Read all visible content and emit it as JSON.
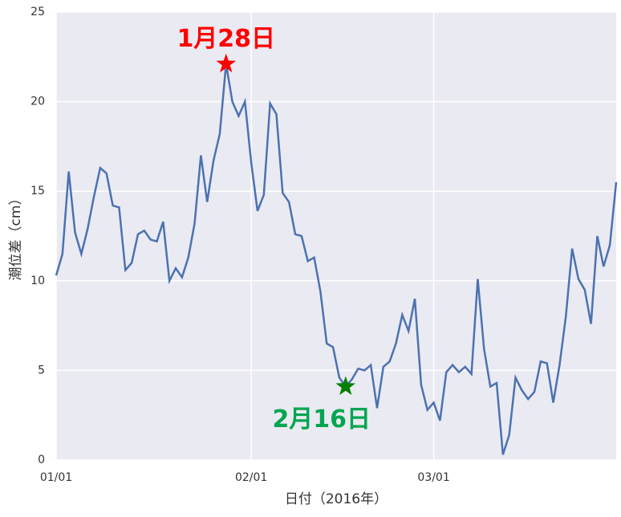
{
  "chart_data": {
    "type": "line",
    "x_label": "日付（2016年）",
    "y_label": "潮位差（cm）",
    "categories": [
      "01/01",
      null,
      null,
      null,
      null,
      null,
      null,
      null,
      null,
      null,
      null,
      null,
      null,
      null,
      null,
      null,
      null,
      null,
      null,
      null,
      null,
      null,
      null,
      null,
      null,
      null,
      null,
      null,
      null,
      null,
      null,
      "02/01",
      null,
      null,
      null,
      null,
      null,
      null,
      null,
      null,
      null,
      null,
      null,
      null,
      null,
      null,
      null,
      null,
      null,
      null,
      null,
      null,
      null,
      null,
      null,
      null,
      null,
      null,
      null,
      null,
      "03/01",
      null,
      null,
      null,
      null,
      null,
      null,
      null,
      null,
      null,
      null,
      null,
      null,
      null,
      null,
      null,
      null,
      null,
      null,
      null,
      null,
      null,
      null,
      null,
      null,
      null,
      null,
      null,
      null,
      null
    ],
    "series": [
      {
        "color": "#4c72b0",
        "values": [
          10.3,
          11.5,
          16.1,
          12.7,
          11.5,
          12.9,
          14.7,
          16.3,
          16.0,
          14.2,
          14.1,
          10.6,
          11.0,
          12.6,
          12.8,
          12.3,
          12.2,
          13.3,
          10.0,
          10.7,
          10.2,
          11.3,
          13.2,
          17.0,
          14.4,
          16.7,
          18.2,
          22.1,
          20.0,
          19.2,
          20.0,
          16.6,
          13.9,
          14.8,
          19.9,
          19.3,
          14.9,
          14.4,
          12.6,
          12.5,
          11.1,
          11.3,
          9.4,
          6.5,
          6.3,
          4.6,
          4.1,
          4.5,
          5.1,
          5.0,
          5.3,
          2.9,
          5.2,
          5.5,
          6.5,
          8.1,
          7.2,
          9.0,
          4.2,
          2.8,
          3.2,
          2.2,
          4.9,
          5.3,
          4.9,
          5.2,
          4.8,
          10.1,
          6.2,
          4.1,
          4.3,
          0.3,
          1.4,
          4.6,
          3.9,
          3.4,
          3.8,
          5.5,
          5.4,
          3.2,
          5.3,
          8.0,
          11.8,
          10.1,
          9.5,
          7.6,
          12.5,
          10.8,
          12.0,
          15.5
        ]
      }
    ],
    "annotations": [
      {
        "text": "1月28日",
        "color": "#ff0000",
        "at": 27,
        "side": "above"
      },
      {
        "text": "2月16日",
        "color": "#00a550",
        "star_color": "#008000",
        "at": 46,
        "side": "below"
      }
    ],
    "ylim": [
      0,
      25
    ],
    "yticks": [
      0,
      5,
      10,
      15,
      20,
      25
    ],
    "grid": true
  }
}
